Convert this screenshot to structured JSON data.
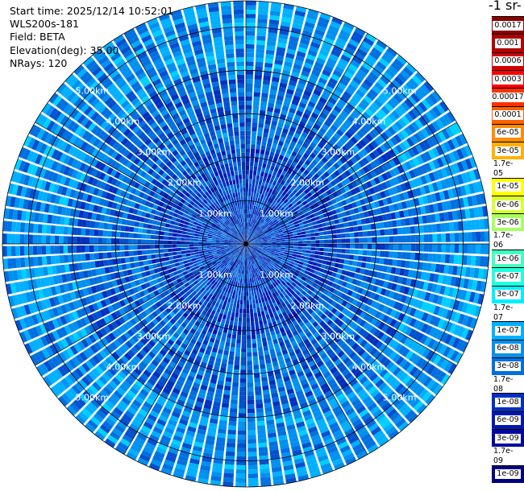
{
  "info": {
    "start_time": "Start time: 2025/12/14 10:52:01",
    "instrument": "WLS200s-181",
    "field": "Field: BETA",
    "elevation": "Elevation(deg): 35.00",
    "nrays": "NRays: 120"
  },
  "colorbar": {
    "title": "-1 sr-",
    "ticks": [
      "0.0017",
      "0.001",
      "0.0006",
      "0.0003",
      "0.00017",
      "0.0001",
      "6e-05",
      "3e-05",
      "1.7e-05",
      "1e-05",
      "6e-06",
      "3e-06",
      "1.7e-06",
      "1e-06",
      "6e-07",
      "3e-07",
      "1.7e-07",
      "1e-07",
      "6e-08",
      "3e-08",
      "1.7e-08",
      "1e-08",
      "6e-09",
      "3e-09",
      "1.7e-09",
      "1e-09"
    ],
    "colors": [
      "#8b0000",
      "#b00000",
      "#d40000",
      "#ff0000",
      "#ff3000",
      "#ff6000",
      "#ff8c00",
      "#ffb000",
      "#ffd800",
      "#ffff00",
      "#d8ff30",
      "#a8ff60",
      "#70ff90",
      "#40ffc0",
      "#20ffe0",
      "#00f0ff",
      "#00d0ff",
      "#00b0ff",
      "#0090f0",
      "#0070e0",
      "#0050d0",
      "#0030c0",
      "#0018b0",
      "#0008a0",
      "#000090",
      "#00007a"
    ]
  },
  "chart_data": {
    "type": "heatmap",
    "title": "",
    "projection": "polar (PPI)",
    "field": "BETA",
    "elevation_deg": 35.0,
    "n_rays": 120,
    "color_scale": "log",
    "value_range": [
      1e-09,
      0.0017
    ],
    "range_rings_km": [
      1,
      2,
      3,
      4,
      5
    ],
    "range_ring_labels": [
      "1.00km",
      "2.00km",
      "3.00km",
      "4.00km",
      "5.00km"
    ],
    "max_range_km": 5.6,
    "observed_pattern": [
      {
        "range_km": [
          0.0,
          2.2
        ],
        "typical_beta": 1.7e-08
      },
      {
        "range_km": [
          2.2,
          4.0
        ],
        "typical_beta": 3e-08
      },
      {
        "range_km": [
          4.0,
          5.6
        ],
        "typical_beta": 6e-08
      }
    ],
    "grid": true
  }
}
